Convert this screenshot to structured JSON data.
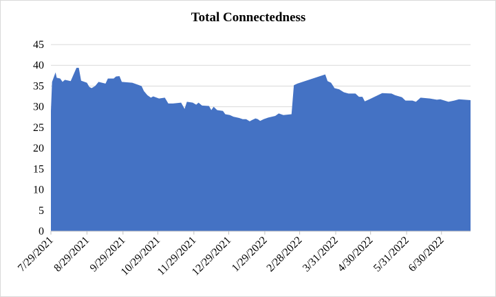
{
  "chart_data": {
    "type": "area",
    "title": "Total Connectedness",
    "color": "#4472c4",
    "grid": true,
    "x": [
      "7/29/2021",
      "7/30/2021",
      "8/2/2021",
      "8/3/2021",
      "8/6/2021",
      "8/8/2021",
      "8/10/2021",
      "8/15/2021",
      "8/20/2021",
      "8/22/2021",
      "8/24/2021",
      "8/29/2021",
      "8/31/2021",
      "9/2/2021",
      "9/5/2021",
      "9/8/2021",
      "9/14/2021",
      "9/16/2021",
      "9/21/2021",
      "9/23/2021",
      "9/26/2021",
      "9/28/2021",
      "10/7/2021",
      "10/12/2021",
      "10/15/2021",
      "10/17/2021",
      "10/20/2021",
      "10/23/2021",
      "10/25/2021",
      "10/30/2021",
      "11/4/2021",
      "11/7/2021",
      "11/11/2021",
      "11/18/2021",
      "11/21/2021",
      "11/23/2021",
      "11/28/2021",
      "12/1/2021",
      "12/3/2021",
      "12/6/2021",
      "12/12/2021",
      "12/14/2021",
      "12/16/2021",
      "12/19/2021",
      "12/24/2021",
      "12/26/2021",
      "12/30/2021",
      "1/2/2022",
      "1/7/2022",
      "1/10/2022",
      "1/13/2022",
      "1/16/2022",
      "1/18/2022",
      "1/21/2022",
      "1/23/2022",
      "1/25/2022",
      "1/28/2022",
      "2/1/2022",
      "2/7/2022",
      "2/10/2022",
      "2/14/2022",
      "2/21/2022",
      "2/23/2022",
      "2/26/2022",
      "3/22/2022",
      "3/24/2022",
      "3/27/2022",
      "3/30/2022",
      "4/3/2022",
      "4/7/2022",
      "4/11/2022",
      "4/17/2022",
      "4/20/2022",
      "4/23/2022",
      "4/25/2022",
      "4/29/2022",
      "5/10/2022",
      "5/18/2022",
      "5/21/2022",
      "5/27/2022",
      "5/30/2022",
      "6/5/2022",
      "6/8/2022",
      "6/12/2022",
      "6/20/2022",
      "6/26/2022",
      "6/29/2022",
      "7/6/2022",
      "7/11/2022",
      "7/15/2022",
      "7/25/2022"
    ],
    "values": [
      29,
      36,
      38.3,
      37,
      36.8,
      36,
      36.5,
      36.2,
      39.4,
      39.4,
      36.3,
      35.8,
      34.8,
      34.5,
      35,
      36,
      35.6,
      36.8,
      36.8,
      37.3,
      37.4,
      36,
      35.8,
      35.3,
      35,
      33.8,
      32.8,
      32.2,
      32.5,
      32,
      32.2,
      30.8,
      30.8,
      31,
      29.5,
      31.2,
      31,
      30.5,
      31,
      30.3,
      30.2,
      29.2,
      30,
      29.2,
      29,
      28.2,
      28,
      27.6,
      27.3,
      27,
      27,
      26.5,
      26.8,
      27.2,
      27,
      26.6,
      27,
      27.4,
      27.8,
      28.4,
      28,
      28.2,
      35.2,
      35.6,
      37.8,
      36.2,
      35.8,
      34.5,
      34.2,
      33.5,
      33.2,
      33.2,
      32.4,
      32.4,
      31.3,
      31.8,
      33.3,
      33.2,
      32.8,
      32.3,
      31.5,
      31.5,
      31.2,
      32.2,
      32,
      31.7,
      31.8,
      31.2,
      31.5,
      31.8,
      31.6
    ],
    "xlim": [
      "7/29/2021",
      "7/25/2022"
    ],
    "xticks": [
      "7/29/2021",
      "8/29/2021",
      "9/29/2021",
      "10/29/2021",
      "11/29/2021",
      "12/29/2021",
      "1/29/2022",
      "2/28/2022",
      "3/31/2022",
      "4/30/2022",
      "5/31/2022",
      "6/30/2022"
    ],
    "ylim": [
      0,
      45
    ],
    "yticks": [
      0,
      5,
      10,
      15,
      20,
      25,
      30,
      35,
      40,
      45
    ]
  }
}
